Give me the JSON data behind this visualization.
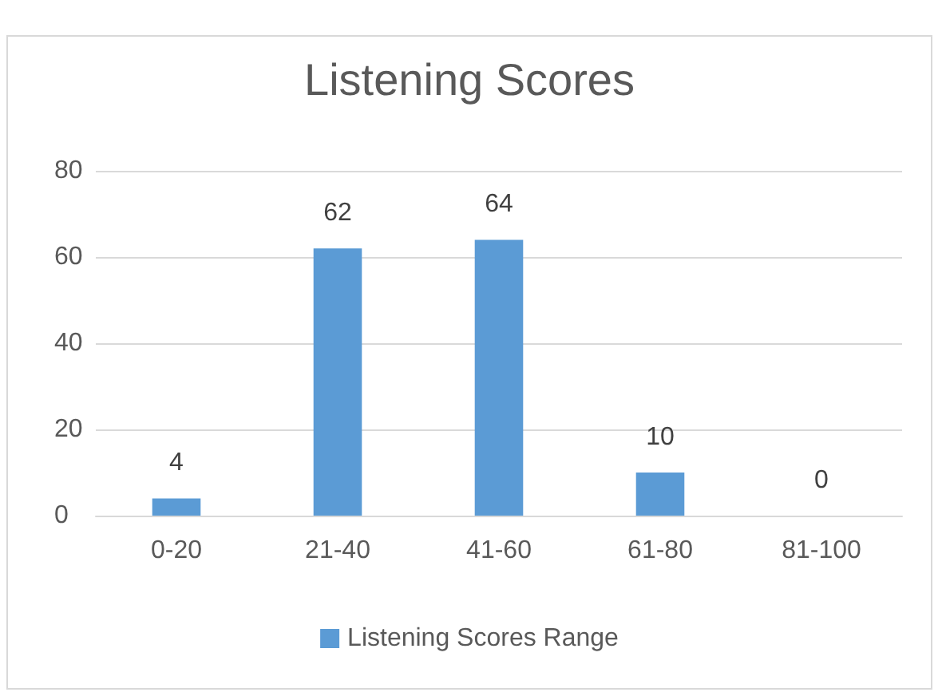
{
  "chart_data": {
    "type": "bar",
    "title": "Listening Scores",
    "categories": [
      "0-20",
      "21-40",
      "41-60",
      "61-80",
      "81-100"
    ],
    "series": [
      {
        "name": "Listening Scores Range",
        "color": "#5b9bd5",
        "values": [
          4,
          62,
          64,
          10,
          0
        ]
      }
    ],
    "ylim": [
      0,
      80
    ],
    "yticks": [
      0,
      20,
      40,
      60,
      80
    ],
    "grid": "y",
    "legend": "bottom",
    "data_labels": true
  }
}
